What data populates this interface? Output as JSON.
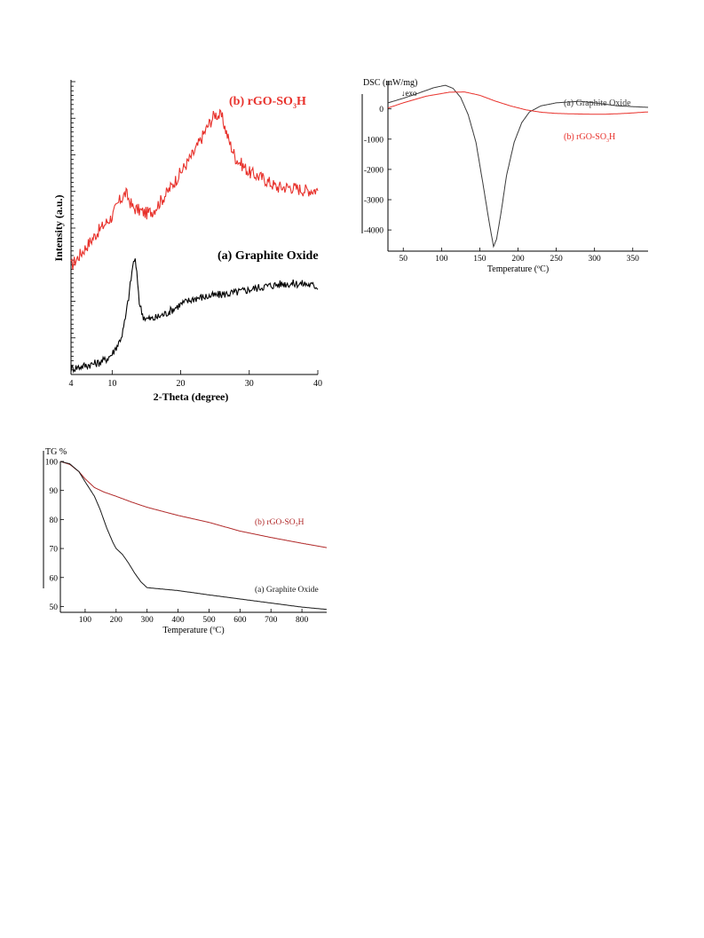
{
  "colors": {
    "black": "#000000",
    "red": "#e8312b",
    "dark_gray": "#3a3a3a",
    "dark_red": "#b02828"
  },
  "chart_data": [
    {
      "type": "line",
      "xlabel": "2-Theta (degree)",
      "ylabel": "Intensity (a.u.)",
      "xlim": [
        4,
        40
      ],
      "x_ticks": [
        "4",
        "10",
        "20",
        "30",
        "40"
      ],
      "grid": false,
      "series": [
        {
          "name": "(b) rGO-SO3H",
          "label_main": "(b) rGO-SO",
          "label_sub": "3",
          "label_tail": "H",
          "color": "#e8312b",
          "x": [
            4,
            6,
            8,
            10,
            11,
            12,
            13,
            14,
            15,
            16,
            18,
            20,
            22,
            24,
            25,
            26,
            27,
            28,
            30,
            32,
            34,
            36,
            38,
            40
          ],
          "y": [
            0.37,
            0.43,
            0.49,
            0.54,
            0.59,
            0.62,
            0.57,
            0.56,
            0.55,
            0.56,
            0.62,
            0.69,
            0.76,
            0.85,
            0.89,
            0.88,
            0.8,
            0.74,
            0.69,
            0.67,
            0.64,
            0.64,
            0.63,
            0.63
          ],
          "noise": 0.022
        },
        {
          "name": "(a) Graphite Oxide",
          "label_main": "(a) Graphite Oxide",
          "label_sub": "",
          "label_tail": "",
          "color": "#000000",
          "x": [
            4,
            6,
            8,
            9,
            10,
            11,
            11.5,
            12,
            12.5,
            13,
            13.3,
            13.7,
            14,
            14.5,
            15,
            16,
            18,
            20,
            22,
            25,
            28,
            30,
            32,
            35,
            38,
            40
          ],
          "y": [
            0.02,
            0.03,
            0.04,
            0.05,
            0.07,
            0.11,
            0.14,
            0.2,
            0.28,
            0.37,
            0.4,
            0.32,
            0.24,
            0.2,
            0.19,
            0.19,
            0.21,
            0.24,
            0.26,
            0.27,
            0.28,
            0.29,
            0.3,
            0.31,
            0.31,
            0.3
          ],
          "noise": 0.014
        }
      ]
    },
    {
      "type": "line",
      "ylabel": "DSC (mW/mg)",
      "annotation": "↓exo",
      "xlabel": "Temperature (ºC)",
      "xlim": [
        30,
        370
      ],
      "ylim": [
        -4700,
        900
      ],
      "x_ticks": [
        50,
        100,
        150,
        200,
        250,
        300,
        350
      ],
      "y_ticks": [
        0,
        -1000,
        -2000,
        -3000,
        -4000
      ],
      "series": [
        {
          "name": "(a) Graphite Oxide",
          "label_main": "(a) Graphite Oxide",
          "label_sub": "",
          "label_tail": "",
          "color": "#3a3a3a",
          "x": [
            30,
            50,
            70,
            90,
            105,
            115,
            125,
            135,
            145,
            155,
            162,
            168,
            172,
            178,
            185,
            195,
            205,
            215,
            230,
            250,
            280,
            300,
            330,
            370
          ],
          "y": [
            200,
            350,
            520,
            700,
            780,
            680,
            380,
            -200,
            -1100,
            -2600,
            -3700,
            -4550,
            -4300,
            -3400,
            -2200,
            -1100,
            -450,
            -100,
            100,
            200,
            250,
            200,
            100,
            50
          ]
        },
        {
          "name": "(b) rGO-SO3H",
          "label_main": "(b) rGO-SO",
          "label_sub": "3",
          "label_tail": "H",
          "color": "#e8312b",
          "x": [
            30,
            50,
            80,
            110,
            130,
            150,
            170,
            190,
            210,
            230,
            250,
            280,
            310,
            340,
            370
          ],
          "y": [
            30,
            200,
            420,
            550,
            560,
            450,
            260,
            100,
            -30,
            -110,
            -150,
            -170,
            -180,
            -150,
            -100
          ]
        }
      ]
    },
    {
      "type": "line",
      "ylabel": "TG %",
      "xlabel": "Temperature (ºC)",
      "xlim": [
        20,
        880
      ],
      "ylim": [
        48,
        100
      ],
      "x_ticks": [
        100,
        200,
        300,
        400,
        500,
        600,
        700,
        800
      ],
      "y_ticks": [
        100,
        90,
        80,
        70,
        60,
        50
      ],
      "series": [
        {
          "name": "(b) rGO-SO3H",
          "label_main": "(b) rGO-SO",
          "label_sub": "3",
          "label_tail": "H",
          "color": "#b02828",
          "x": [
            20,
            50,
            80,
            100,
            130,
            160,
            200,
            250,
            300,
            400,
            500,
            600,
            700,
            800,
            880
          ],
          "y": [
            100,
            99,
            96.5,
            94,
            91,
            89.5,
            88,
            86,
            84.2,
            81.4,
            79,
            76,
            73.8,
            71.8,
            70.3
          ]
        },
        {
          "name": "(a) Graphite Oxide",
          "label_main": "(a) Graphite Oxide",
          "label_sub": "",
          "label_tail": "",
          "color": "#1a1a1a",
          "x": [
            20,
            50,
            80,
            100,
            130,
            150,
            170,
            190,
            200,
            220,
            240,
            260,
            280,
            300,
            350,
            400,
            500,
            600,
            700,
            800,
            880
          ],
          "y": [
            100,
            99.2,
            96.5,
            93,
            88,
            83,
            77,
            72,
            70,
            68,
            65,
            61.5,
            58.5,
            56.5,
            56,
            55.5,
            54,
            52.6,
            51.2,
            49.8,
            49
          ]
        }
      ]
    }
  ]
}
